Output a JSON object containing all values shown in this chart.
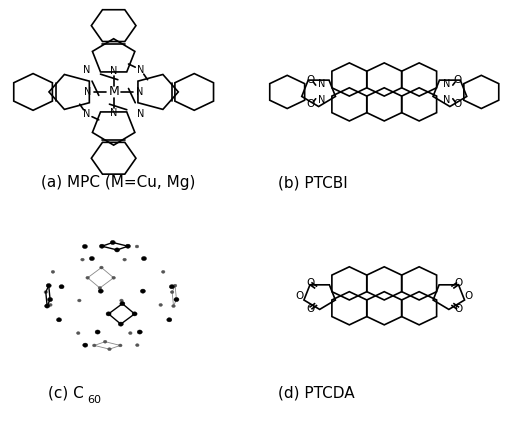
{
  "background_color": "#ffffff",
  "label_a": "(a) MPC (M=Cu, Mg)",
  "label_b": "(b) PTCBI",
  "label_c_base": "(c) C",
  "label_c_sub": "60",
  "label_d": "(d) PTCDA",
  "label_fontsize": 11,
  "fig_width": 5.13,
  "fig_height": 4.23,
  "dpi": 100
}
